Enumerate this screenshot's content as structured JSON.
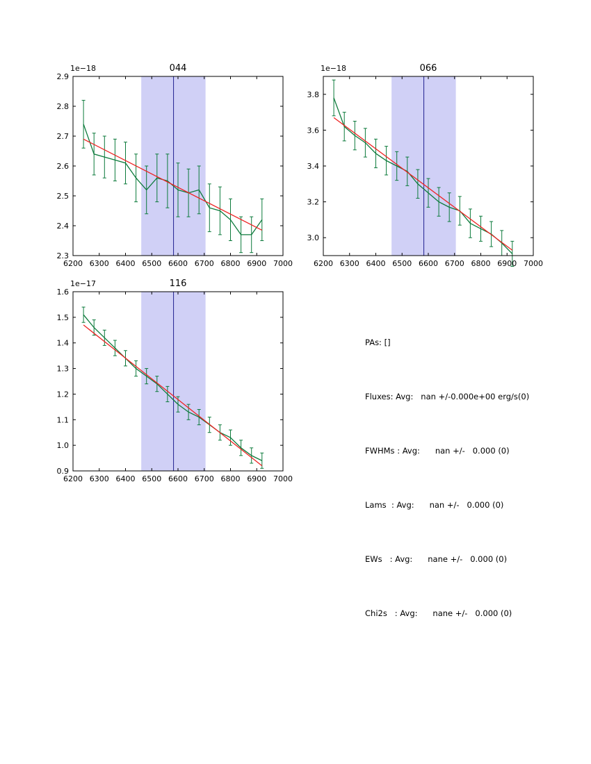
{
  "page": {
    "background": "#ffffff"
  },
  "stats": {
    "lines": [
      "PAs: []",
      "Fluxes: Avg:   nan +/-0.000e+00 erg/s(0)",
      "FWHMs : Avg:      nan +/-   0.000 (0)",
      "Lams  : Avg:      nan +/-   0.000 (0)",
      "EWs   : Avg:      nane +/-   0.000 (0)",
      "Chi2s   : Avg:      nane +/-   0.000 (0)"
    ]
  },
  "chart_data": [
    {
      "type": "line",
      "title": "044",
      "offset_label": "1e−18",
      "xlabel": "",
      "ylabel": "",
      "xlim": [
        6200,
        7000
      ],
      "ylim": [
        2.3,
        2.9
      ],
      "xticks": [
        6200,
        6300,
        6400,
        6500,
        6600,
        6700,
        6800,
        6900,
        7000
      ],
      "yticks": [
        2.3,
        2.4,
        2.5,
        2.6,
        2.7,
        2.8,
        2.9
      ],
      "grid": false,
      "legend": false,
      "band": [
        6460,
        6705
      ],
      "vline": 6583,
      "x": [
        6240,
        6280,
        6320,
        6360,
        6400,
        6440,
        6480,
        6520,
        6560,
        6600,
        6640,
        6680,
        6720,
        6760,
        6800,
        6840,
        6880,
        6920
      ],
      "series": [
        {
          "name": "spectrum",
          "color": "#0c7a3b",
          "values": [
            2.74,
            2.64,
            2.63,
            2.62,
            2.61,
            2.56,
            2.52,
            2.56,
            2.55,
            2.52,
            2.51,
            2.52,
            2.46,
            2.45,
            2.42,
            2.37,
            2.37,
            2.42
          ],
          "err": [
            0.08,
            0.07,
            0.07,
            0.07,
            0.07,
            0.08,
            0.08,
            0.08,
            0.09,
            0.09,
            0.08,
            0.08,
            0.08,
            0.08,
            0.07,
            0.06,
            0.06,
            0.07
          ]
        },
        {
          "name": "continuum-fit",
          "color": "#ee2222",
          "x": [
            6240,
            6920
          ],
          "values": [
            2.69,
            2.385
          ]
        }
      ],
      "colors": {
        "band": "#aaaaee",
        "vline": "#202090",
        "frame": "#000000"
      }
    },
    {
      "type": "line",
      "title": "066",
      "offset_label": "1e−18",
      "xlabel": "",
      "ylabel": "",
      "xlim": [
        6200,
        7000
      ],
      "ylim": [
        2.9,
        3.9
      ],
      "xticks": [
        6200,
        6300,
        6400,
        6500,
        6600,
        6700,
        6800,
        6900,
        7000
      ],
      "yticks": [
        3.0,
        3.2,
        3.4,
        3.6,
        3.8
      ],
      "grid": false,
      "legend": false,
      "band": [
        6460,
        6705
      ],
      "vline": 6583,
      "x": [
        6240,
        6280,
        6320,
        6360,
        6400,
        6440,
        6480,
        6520,
        6560,
        6600,
        6640,
        6680,
        6720,
        6760,
        6800,
        6840,
        6880,
        6920
      ],
      "series": [
        {
          "name": "spectrum",
          "color": "#0c7a3b",
          "values": [
            3.78,
            3.62,
            3.57,
            3.53,
            3.47,
            3.43,
            3.4,
            3.37,
            3.3,
            3.25,
            3.2,
            3.17,
            3.15,
            3.08,
            3.05,
            3.02,
            2.97,
            2.91
          ],
          "err": [
            0.1,
            0.08,
            0.08,
            0.08,
            0.08,
            0.08,
            0.08,
            0.08,
            0.08,
            0.08,
            0.08,
            0.08,
            0.08,
            0.08,
            0.07,
            0.07,
            0.07,
            0.07
          ]
        },
        {
          "name": "continuum-fit",
          "color": "#ee2222",
          "x": [
            6240,
            6920
          ],
          "values": [
            3.67,
            2.93
          ]
        }
      ],
      "colors": {
        "band": "#aaaaee",
        "vline": "#202090",
        "frame": "#000000"
      }
    },
    {
      "type": "line",
      "title": "116",
      "offset_label": "1e−17",
      "xlabel": "",
      "ylabel": "",
      "xlim": [
        6200,
        7000
      ],
      "ylim": [
        0.9,
        1.6
      ],
      "xticks": [
        6200,
        6300,
        6400,
        6500,
        6600,
        6700,
        6800,
        6900,
        7000
      ],
      "yticks": [
        0.9,
        1.0,
        1.1,
        1.2,
        1.3,
        1.4,
        1.5,
        1.6
      ],
      "grid": false,
      "legend": false,
      "band": [
        6460,
        6705
      ],
      "vline": 6583,
      "x": [
        6240,
        6280,
        6320,
        6360,
        6400,
        6440,
        6480,
        6520,
        6560,
        6600,
        6640,
        6680,
        6720,
        6760,
        6800,
        6840,
        6880,
        6920
      ],
      "series": [
        {
          "name": "spectrum",
          "color": "#0c7a3b",
          "values": [
            1.51,
            1.46,
            1.42,
            1.38,
            1.34,
            1.3,
            1.27,
            1.24,
            1.2,
            1.16,
            1.13,
            1.11,
            1.08,
            1.05,
            1.03,
            0.99,
            0.96,
            0.94
          ],
          "err": [
            0.03,
            0.03,
            0.03,
            0.03,
            0.03,
            0.03,
            0.03,
            0.03,
            0.03,
            0.03,
            0.03,
            0.03,
            0.03,
            0.03,
            0.03,
            0.03,
            0.03,
            0.03
          ]
        },
        {
          "name": "continuum-fit",
          "color": "#ee2222",
          "x": [
            6240,
            6920
          ],
          "values": [
            1.47,
            0.92
          ]
        }
      ],
      "colors": {
        "band": "#aaaaee",
        "vline": "#202090",
        "frame": "#000000"
      }
    }
  ]
}
